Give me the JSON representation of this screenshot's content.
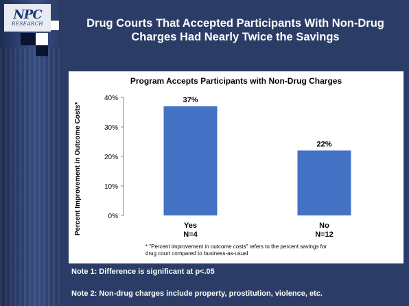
{
  "logo": {
    "main": "NPC",
    "sub": "RESEARCH"
  },
  "slide": {
    "title": "Drug Courts That Accepted Participants With Non-Drug Charges Had Nearly Twice the Savings"
  },
  "notes": {
    "note1": "Note 1: Difference is significant at p<.05",
    "note2": "Note 2: Non-drug charges include property, prostitution, violence, etc."
  },
  "colors": {
    "bar": "#4472c4",
    "background": "#2b3d66"
  },
  "chart_data": {
    "type": "bar",
    "title": "Program Accepts Participants with Non-Drug Charges",
    "ylabel": "Percent Improvement in Outcome Costs*",
    "xlabel": "",
    "categories": [
      "Yes",
      "No"
    ],
    "category_sublabels": [
      "N=4",
      "N=12"
    ],
    "values": [
      37,
      22
    ],
    "data_labels": [
      "37%",
      "22%"
    ],
    "ylim": [
      0,
      40
    ],
    "yticks": [
      0,
      10,
      20,
      30,
      40
    ],
    "ytick_labels": [
      "0%",
      "10%",
      "20%",
      "30%",
      "40%"
    ],
    "grid": false,
    "legend": "none",
    "footnote_line1": "* \"Percent improvement in outcome costs\" refers to the percent savings for",
    "footnote_line2": "drug court compared to business-as-usual"
  }
}
